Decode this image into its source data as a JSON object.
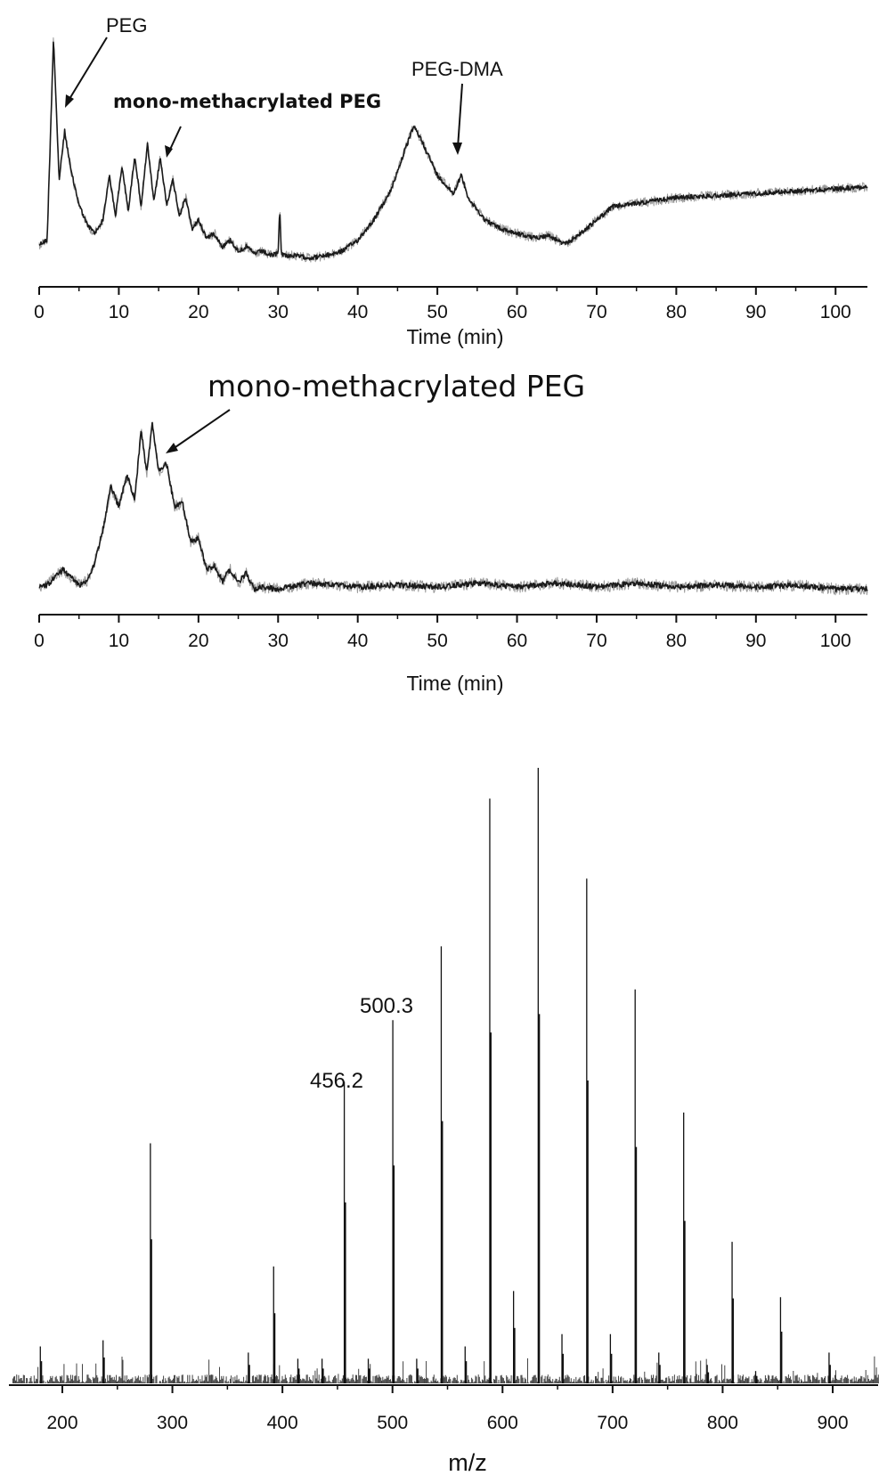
{
  "chart_data": [
    {
      "type": "line",
      "xlabel": "Time (min)",
      "xlim": [
        0,
        104
      ],
      "x_ticks": [
        "0",
        "10",
        "20",
        "30",
        "40",
        "50",
        "60",
        "70",
        "80",
        "90",
        "100"
      ],
      "annotations": [
        "PEG",
        "mono-methacrylated PEG",
        "PEG-DMA"
      ],
      "series": [
        {
          "x": [
            0,
            1,
            1.8,
            2.5,
            3.2,
            4,
            5,
            6,
            7,
            8,
            8.8,
            9.6,
            10.4,
            11.2,
            12,
            12.8,
            13.6,
            14.4,
            15.2,
            16,
            16.8,
            17.6,
            18.4,
            19.2,
            20,
            21,
            22,
            23,
            24,
            25,
            26,
            27,
            28,
            29,
            30,
            30.2,
            30.4,
            31,
            32,
            34,
            36,
            38,
            40,
            42,
            44,
            46,
            47,
            48,
            50,
            52,
            53,
            54,
            56,
            58,
            60,
            62,
            64,
            66,
            68,
            70,
            72,
            74,
            76,
            78,
            80,
            85,
            90,
            95,
            100,
            104
          ],
          "y": [
            7,
            9,
            100,
            36,
            58,
            40,
            25,
            16,
            12,
            18,
            38,
            20,
            42,
            22,
            47,
            24,
            52,
            26,
            46,
            25,
            36,
            20,
            28,
            14,
            18,
            10,
            12,
            6,
            9,
            4,
            6,
            3,
            4,
            2,
            3,
            24,
            3,
            2,
            2,
            1,
            2,
            4,
            9,
            18,
            30,
            50,
            60,
            54,
            38,
            30,
            38,
            27,
            18,
            14,
            12,
            10,
            11,
            7,
            12,
            18,
            24,
            25,
            26,
            27,
            28,
            29,
            30,
            31,
            32,
            33
          ]
        }
      ]
    },
    {
      "type": "line",
      "xlabel": "Time (min)",
      "xlim": [
        0,
        104
      ],
      "x_ticks": [
        "0",
        "10",
        "20",
        "30",
        "40",
        "50",
        "60",
        "70",
        "80",
        "90",
        "100"
      ],
      "annotations": [
        "mono-methacrylated PEG"
      ],
      "series": [
        {
          "x": [
            0,
            1,
            3,
            5,
            6,
            7,
            8,
            9,
            10,
            11,
            12,
            12.8,
            13.5,
            14.2,
            15,
            16,
            17,
            18,
            19,
            20,
            21,
            22,
            23,
            24,
            25,
            26,
            27,
            28,
            30,
            34,
            40,
            45,
            50,
            55,
            60,
            65,
            70,
            75,
            80,
            85,
            90,
            95,
            100,
            104
          ],
          "y": [
            5,
            6,
            14,
            6,
            8,
            18,
            34,
            56,
            46,
            62,
            50,
            85,
            63,
            88,
            64,
            68,
            46,
            48,
            28,
            30,
            14,
            16,
            8,
            14,
            7,
            12,
            4,
            5,
            4,
            7,
            5,
            6,
            5,
            7,
            5,
            7,
            5,
            7,
            5,
            6,
            5,
            6,
            4,
            4
          ]
        }
      ]
    },
    {
      "type": "bar",
      "xlabel": "m/z",
      "xlim": [
        155,
        945
      ],
      "x_ticks": [
        "200",
        "300",
        "400",
        "500",
        "600",
        "700",
        "800",
        "900"
      ],
      "peak_labels": [
        "456.2",
        "500.3"
      ],
      "peaks": {
        "x": [
          180,
          237,
          280,
          369,
          392,
          414,
          436,
          456.2,
          478,
          500.3,
          522,
          544.3,
          566,
          588.4,
          610,
          632.4,
          654,
          676.5,
          698,
          720.5,
          742,
          764.6,
          786,
          808.6,
          830,
          852.6,
          896.7
        ],
        "y": [
          6,
          7,
          39,
          5,
          19,
          4,
          4,
          49,
          4,
          59,
          4,
          71,
          6,
          95,
          15,
          100,
          8,
          82,
          8,
          64,
          5,
          44,
          3,
          23,
          2,
          14,
          5
        ]
      }
    }
  ]
}
